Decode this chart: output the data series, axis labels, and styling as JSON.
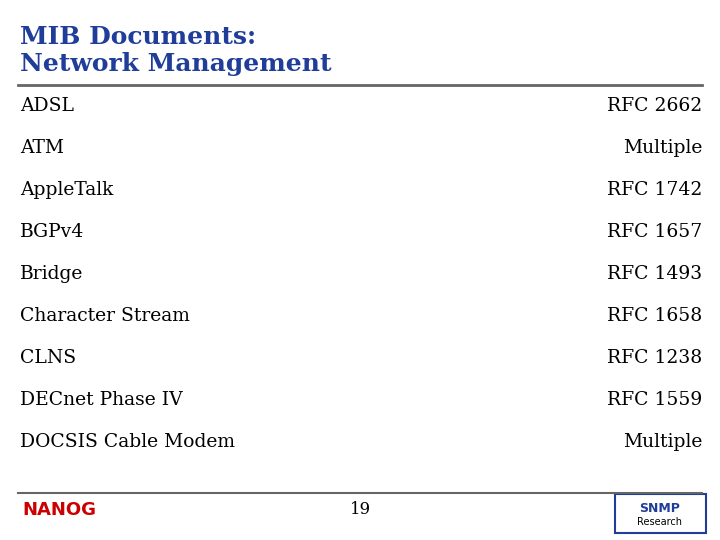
{
  "title_line1": "MIB Documents:",
  "title_line2": "Network Management",
  "title_color": "#1F3D99",
  "background_color": "#FFFFFF",
  "rows": [
    [
      "ADSL",
      "RFC 2662"
    ],
    [
      "ATM",
      "Multiple"
    ],
    [
      "AppleTalk",
      "RFC 1742"
    ],
    [
      "BGPv4",
      "RFC 1657"
    ],
    [
      "Bridge",
      "RFC 1493"
    ],
    [
      "Character Stream",
      "RFC 1658"
    ],
    [
      "CLNS",
      "RFC 1238"
    ],
    [
      "DECnet Phase IV",
      "RFC 1559"
    ],
    [
      "DOCSIS Cable Modem",
      "Multiple"
    ]
  ],
  "body_text_color": "#000000",
  "separator_color": "#666666",
  "footer_line_color": "#666666",
  "page_number": "19",
  "nanog_color": "#CC0000",
  "snmp_box_color": "#1F3D99",
  "title_fontsize": 18,
  "body_fontsize": 13.5,
  "footer_fontsize": 12
}
